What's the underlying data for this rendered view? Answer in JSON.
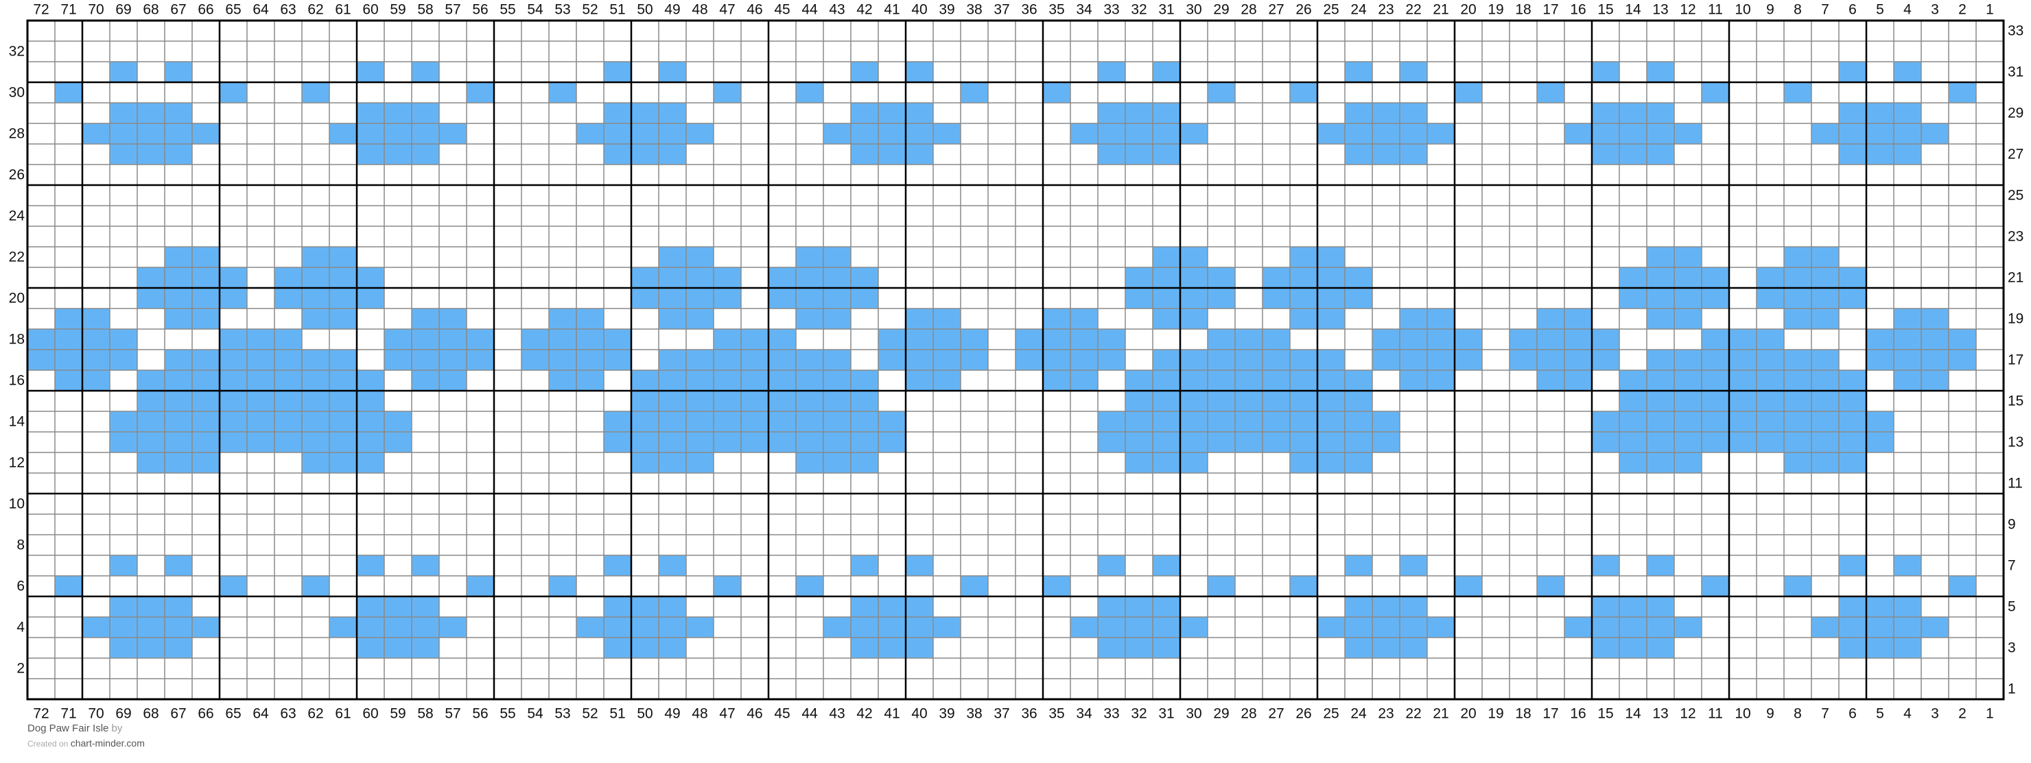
{
  "chart_data": {
    "type": "heatmap",
    "columns": 72,
    "rows_count": 33,
    "colors": {
      "background": "#ffffff",
      "contrast": "#64b4f5",
      "grid_thin": "#8a8a8a",
      "grid_bold": "#000000"
    },
    "bold_line_every": 5,
    "column_labels": [
      72,
      71,
      70,
      69,
      68,
      67,
      66,
      65,
      64,
      63,
      62,
      61,
      60,
      59,
      58,
      57,
      56,
      55,
      54,
      53,
      52,
      51,
      50,
      49,
      48,
      47,
      46,
      45,
      44,
      43,
      42,
      41,
      40,
      39,
      38,
      37,
      36,
      35,
      34,
      33,
      32,
      31,
      30,
      29,
      28,
      27,
      26,
      25,
      24,
      23,
      22,
      21,
      20,
      19,
      18,
      17,
      16,
      15,
      14,
      13,
      12,
      11,
      10,
      9,
      8,
      7,
      6,
      5,
      4,
      3,
      2,
      1
    ],
    "row_labels_left": [
      32,
      30,
      28,
      26,
      24,
      22,
      20,
      18,
      16,
      14,
      12,
      10,
      8,
      6,
      4,
      2
    ],
    "row_labels_right": [
      33,
      31,
      29,
      27,
      25,
      23,
      21,
      19,
      17,
      15,
      13,
      11,
      9,
      7,
      5,
      3,
      1
    ],
    "rows": [
      {
        "row": 33,
        "stitches": "........................................................................"
      },
      {
        "row": 32,
        "stitches": "........................................................................"
      },
      {
        "row": 31,
        "stitches": "...X.X......X.X......X.X......X.X......X.X......X.X......X.X......X.X..."
      },
      {
        "row": 30,
        "stitches": ".X.....X..X.....X..X.....X..X.....X..X.....X..X.....X..X.....X..X.....X."
      },
      {
        "row": 29,
        "stitches": "...XXX......XXX......XXX......XXX......XXX......XXX......XXX......XXX..."
      },
      {
        "row": 28,
        "stitches": "..XXXXX....XXXXX....XXXXX....XXXXX....XXXXX....XXXXX....XXXXX....XXXXX.."
      },
      {
        "row": 27,
        "stitches": "...XXX......XXX......XXX......XXX......XXX......XXX......XXX......XXX..."
      },
      {
        "row": 26,
        "stitches": "........................................................................"
      },
      {
        "row": 25,
        "stitches": "........................................................................"
      },
      {
        "row": 24,
        "stitches": "........................................................................"
      },
      {
        "row": 23,
        "stitches": "........................................................................"
      },
      {
        "row": 22,
        "stitches": ".....XX...XX...........XX...XX...........XX...XX...........XX...XX......"
      },
      {
        "row": 21,
        "stitches": "....XXXX.XXXX.........XXXX.XXXX.........XXXX.XXXX.........XXXX.XXXX....."
      },
      {
        "row": 20,
        "stitches": "....XXXX.XXXX.........XXXX.XXXX.........XXXX.XXXX.........XXXX.XXXX....."
      },
      {
        "row": 19,
        "stitches": ".XX..XX...XX..XX...XX..XX...XX..XX...XX..XX...XX..XX...XX..XX...XX..XX.."
      },
      {
        "row": 18,
        "stitches": "XXXX...XXX...XXXX.XXXX...XXX...XXXX.XXXX...XXX...XXXX.XXXX...XXX...XXXX."
      },
      {
        "row": 17,
        "stitches": "XXXX.XXXXXXX.XXXX.XXXX.XXXXXXX.XXXX.XXXX.XXXXXXX.XXXX.XXXX.XXXXXXX.XXXX."
      },
      {
        "row": 16,
        "stitches": ".XX.XXXXXXXXX.XX...XX.XXXXXXXXX.XX...XX.XXXXXXXXX.XX...XX.XXXXXXXXX.XX.."
      },
      {
        "row": 15,
        "stitches": "....XXXXXXXXX.........XXXXXXXXX.........XXXXXXXXX.........XXXXXXXXX....."
      },
      {
        "row": 14,
        "stitches": "...XXXXXXXXXXX.......XXXXXXXXXXX.......XXXXXXXXXXX.......XXXXXXXXXXX...."
      },
      {
        "row": 13,
        "stitches": "...XXXXXXXXXXX.......XXXXXXXXXXX.......XXXXXXXXXXX.......XXXXXXXXXXX...."
      },
      {
        "row": 12,
        "stitches": "....XXX...XXX.........XXX...XXX.........XXX...XXX.........XXX...XXX....."
      },
      {
        "row": 11,
        "stitches": "........................................................................"
      },
      {
        "row": 10,
        "stitches": "........................................................................"
      },
      {
        "row": 9,
        "stitches": "........................................................................"
      },
      {
        "row": 8,
        "stitches": "........................................................................"
      },
      {
        "row": 7,
        "stitches": "...X.X......X.X......X.X......X.X......X.X......X.X......X.X......X.X..."
      },
      {
        "row": 6,
        "stitches": ".X.....X..X.....X..X.....X..X.....X..X.....X..X.....X..X.....X..X.....X."
      },
      {
        "row": 5,
        "stitches": "...XXX......XXX......XXX......XXX......XXX......XXX......XXX......XXX..."
      },
      {
        "row": 4,
        "stitches": "..XXXXX....XXXXX....XXXXX....XXXXX....XXXXX....XXXXX....XXXXX....XXXXX.."
      },
      {
        "row": 3,
        "stitches": "...XXX......XXX......XXX......XXX......XXX......XXX......XXX......XXX..."
      },
      {
        "row": 2,
        "stitches": "........................................................................"
      },
      {
        "row": 1,
        "stitches": "........................................................................"
      }
    ]
  },
  "footer": {
    "title": "Dog Paw Fair Isle",
    "by": "by",
    "created_on": "Created on",
    "site": "chart-minder.com"
  }
}
